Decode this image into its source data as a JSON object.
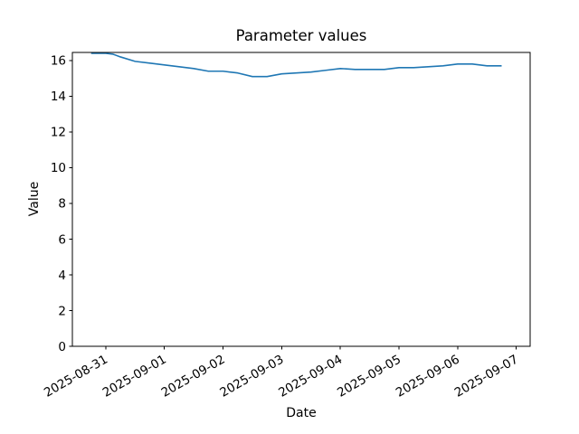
{
  "chart_data": {
    "type": "line",
    "title": "Parameter values",
    "xlabel": "Date",
    "ylabel": "Value",
    "grid": false,
    "legend": null,
    "line_color": "#1f77b4",
    "x_tick_labels": [
      "2025-08-31",
      "2025-09-01",
      "2025-09-02",
      "2025-09-03",
      "2025-09-04",
      "2025-09-05",
      "2025-09-06",
      "2025-09-07"
    ],
    "y_ticks": [
      0,
      2,
      4,
      6,
      8,
      10,
      12,
      14,
      16
    ],
    "xlim": [
      "2025-08-30T10:20",
      "2025-09-07T05:40"
    ],
    "ylim": [
      0,
      16.45
    ],
    "series": [
      {
        "name": "Parameter values",
        "x": [
          "2025-08-30T18:00",
          "2025-08-31T00:00",
          "2025-08-31T03:00",
          "2025-08-31T06:00",
          "2025-08-31T12:00",
          "2025-08-31T18:00",
          "2025-09-01T00:00",
          "2025-09-01T06:00",
          "2025-09-01T12:00",
          "2025-09-01T18:00",
          "2025-09-02T00:00",
          "2025-09-02T06:00",
          "2025-09-02T12:00",
          "2025-09-02T18:00",
          "2025-09-03T00:00",
          "2025-09-03T06:00",
          "2025-09-03T12:00",
          "2025-09-03T18:00",
          "2025-09-04T00:00",
          "2025-09-04T06:00",
          "2025-09-04T12:00",
          "2025-09-04T18:00",
          "2025-09-05T00:00",
          "2025-09-05T06:00",
          "2025-09-05T12:00",
          "2025-09-05T18:00",
          "2025-09-06T00:00",
          "2025-09-06T06:00",
          "2025-09-06T12:00",
          "2025-09-06T18:00"
        ],
        "y": [
          16.4,
          16.4,
          16.35,
          16.2,
          15.95,
          15.85,
          15.75,
          15.65,
          15.55,
          15.4,
          15.4,
          15.3,
          15.1,
          15.1,
          15.25,
          15.3,
          15.35,
          15.45,
          15.55,
          15.5,
          15.5,
          15.5,
          15.6,
          15.6,
          15.65,
          15.7,
          15.8,
          15.8,
          15.7,
          15.7
        ]
      }
    ]
  }
}
